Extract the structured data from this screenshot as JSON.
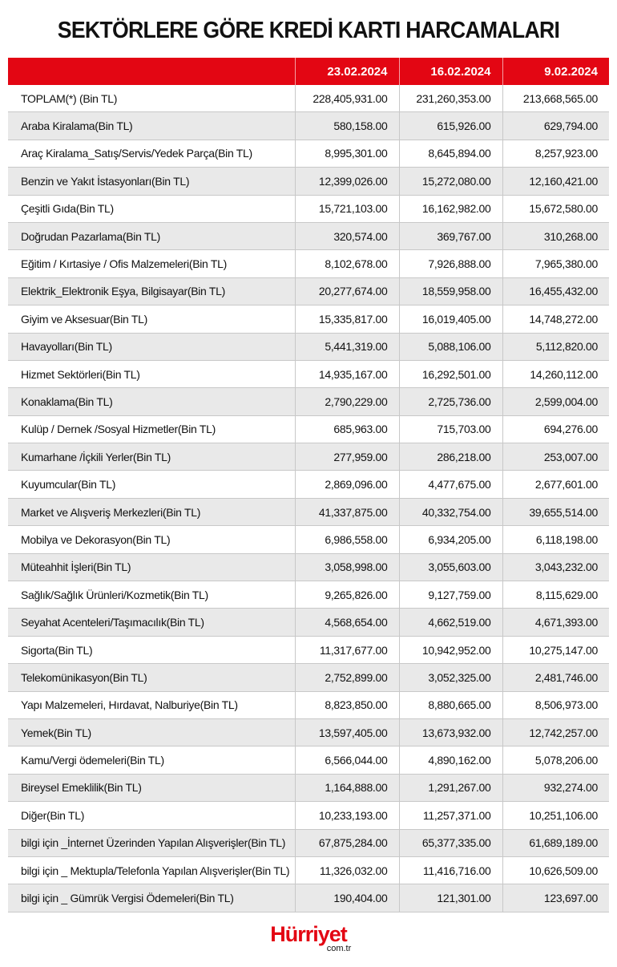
{
  "title": "SEKTÖRLERE GÖRE KREDİ KARTI HARCAMALARI",
  "columns": [
    "",
    "23.02.2024",
    "16.02.2024",
    "9.02.2024"
  ],
  "rows": [
    [
      "TOPLAM(*) (Bin TL)",
      "228,405,931.00",
      "231,260,353.00",
      "213,668,565.00"
    ],
    [
      "Araba Kiralama(Bin TL)",
      "580,158.00",
      "615,926.00",
      "629,794.00"
    ],
    [
      "Araç Kiralama_Satış/Servis/Yedek Parça(Bin TL)",
      "8,995,301.00",
      "8,645,894.00",
      "8,257,923.00"
    ],
    [
      "Benzin ve Yakıt İstasyonları(Bin TL)",
      "12,399,026.00",
      "15,272,080.00",
      "12,160,421.00"
    ],
    [
      "Çeşitli Gıda(Bin TL)",
      "15,721,103.00",
      "16,162,982.00",
      "15,672,580.00"
    ],
    [
      "Doğrudan Pazarlama(Bin TL)",
      "320,574.00",
      "369,767.00",
      "310,268.00"
    ],
    [
      "Eğitim / Kırtasiye / Ofis Malzemeleri(Bin TL)",
      "8,102,678.00",
      "7,926,888.00",
      "7,965,380.00"
    ],
    [
      "Elektrik_Elektronik Eşya, Bilgisayar(Bin TL)",
      "20,277,674.00",
      "18,559,958.00",
      "16,455,432.00"
    ],
    [
      "Giyim ve Aksesuar(Bin TL)",
      "15,335,817.00",
      "16,019,405.00",
      "14,748,272.00"
    ],
    [
      "Havayolları(Bin TL)",
      "5,441,319.00",
      "5,088,106.00",
      "5,112,820.00"
    ],
    [
      "Hizmet Sektörleri(Bin TL)",
      "14,935,167.00",
      "16,292,501.00",
      "14,260,112.00"
    ],
    [
      "Konaklama(Bin TL)",
      "2,790,229.00",
      "2,725,736.00",
      "2,599,004.00"
    ],
    [
      "Kulüp / Dernek /Sosyal Hizmetler(Bin TL)",
      "685,963.00",
      "715,703.00",
      "694,276.00"
    ],
    [
      "Kumarhane /İçkili Yerler(Bin TL)",
      "277,959.00",
      "286,218.00",
      "253,007.00"
    ],
    [
      "Kuyumcular(Bin TL)",
      "2,869,096.00",
      "4,477,675.00",
      "2,677,601.00"
    ],
    [
      "Market ve Alışveriş Merkezleri(Bin TL)",
      "41,337,875.00",
      "40,332,754.00",
      "39,655,514.00"
    ],
    [
      "Mobilya ve Dekorasyon(Bin TL)",
      "6,986,558.00",
      "6,934,205.00",
      "6,118,198.00"
    ],
    [
      "Müteahhit İşleri(Bin TL)",
      "3,058,998.00",
      "3,055,603.00",
      "3,043,232.00"
    ],
    [
      "Sağlık/Sağlık Ürünleri/Kozmetik(Bin TL)",
      "9,265,826.00",
      "9,127,759.00",
      "8,115,629.00"
    ],
    [
      "Seyahat Acenteleri/Taşımacılık(Bin TL)",
      "4,568,654.00",
      "4,662,519.00",
      "4,671,393.00"
    ],
    [
      "Sigorta(Bin TL)",
      "11,317,677.00",
      "10,942,952.00",
      "10,275,147.00"
    ],
    [
      "Telekomünikasyon(Bin TL)",
      "2,752,899.00",
      "3,052,325.00",
      "2,481,746.00"
    ],
    [
      "Yapı Malzemeleri, Hırdavat, Nalburiye(Bin TL)",
      "8,823,850.00",
      "8,880,665.00",
      "8,506,973.00"
    ],
    [
      "Yemek(Bin TL)",
      "13,597,405.00",
      "13,673,932.00",
      "12,742,257.00"
    ],
    [
      "Kamu/Vergi ödemeleri(Bin TL)",
      "6,566,044.00",
      "4,890,162.00",
      "5,078,206.00"
    ],
    [
      "Bireysel Emeklilik(Bin TL)",
      "1,164,888.00",
      "1,291,267.00",
      "932,274.00"
    ],
    [
      "Diğer(Bin TL)",
      "10,233,193.00",
      "11,257,371.00",
      "10,251,106.00"
    ],
    [
      "bilgi için _İnternet Üzerinden Yapılan Alışverişler(Bin TL)",
      "67,875,284.00",
      "65,377,335.00",
      "61,689,189.00"
    ],
    [
      "bilgi için _ Mektupla/Telefonla Yapılan Alışverişler(Bin TL)",
      "11,326,032.00",
      "11,416,716.00",
      "10,626,509.00"
    ],
    [
      "bilgi için _ Gümrük Vergisi Ödemeleri(Bin TL)",
      "190,404.00",
      "121,301.00",
      "123,697.00"
    ]
  ],
  "colors": {
    "header": "#e30613",
    "alt_row": "#e9e9e9",
    "brand": "#e30613"
  },
  "logo": {
    "brand": "Hürriyet",
    "sub": "com.tr"
  }
}
